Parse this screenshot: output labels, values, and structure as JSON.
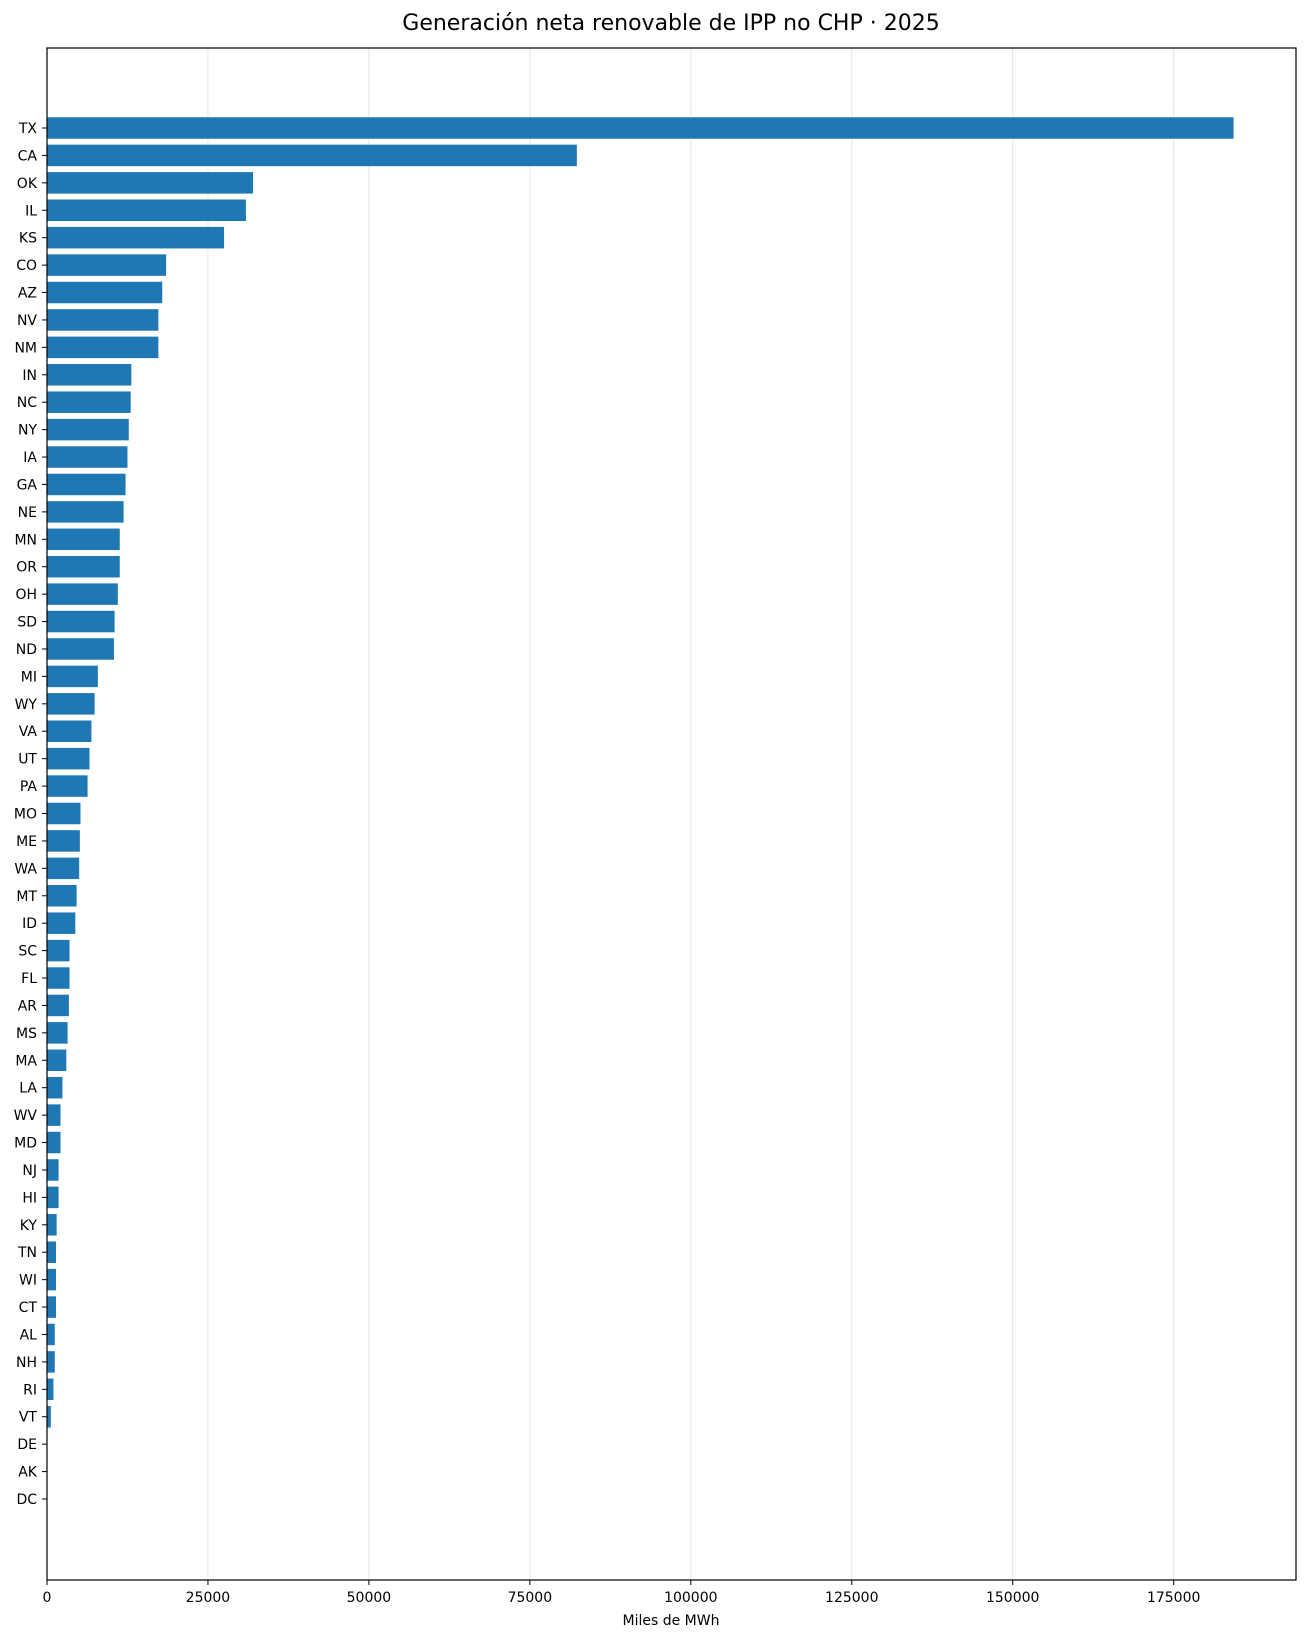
{
  "chart_data": {
    "type": "bar",
    "orientation": "horizontal",
    "title": "Generación neta renovable de IPP no CHP · 2025",
    "xlabel": "Miles de MWh",
    "ylabel": "",
    "xlim": [
      0,
      194000
    ],
    "x_ticks": [
      0,
      25000,
      50000,
      75000,
      100000,
      125000,
      150000,
      175000
    ],
    "x_tick_labels": [
      "0",
      "25000",
      "50000",
      "75000",
      "100000",
      "125000",
      "150000",
      "175000"
    ],
    "grid": "vertical",
    "bar_color": "#1f77b4",
    "categories": [
      "TX",
      "CA",
      "OK",
      "IL",
      "KS",
      "CO",
      "AZ",
      "NV",
      "NM",
      "IN",
      "NC",
      "NY",
      "IA",
      "GA",
      "NE",
      "MN",
      "OR",
      "OH",
      "SD",
      "ND",
      "MI",
      "WY",
      "VA",
      "UT",
      "PA",
      "MO",
      "ME",
      "WA",
      "MT",
      "ID",
      "SC",
      "FL",
      "AR",
      "MS",
      "MA",
      "LA",
      "WV",
      "MD",
      "NJ",
      "HI",
      "KY",
      "TN",
      "WI",
      "CT",
      "AL",
      "NH",
      "RI",
      "VT",
      "DE",
      "AK",
      "DC"
    ],
    "values": [
      184300,
      82300,
      32000,
      30900,
      27500,
      18500,
      17900,
      17300,
      17300,
      13100,
      13000,
      12700,
      12500,
      12200,
      11900,
      11300,
      11300,
      11000,
      10500,
      10400,
      7900,
      7400,
      6900,
      6600,
      6300,
      5200,
      5100,
      5000,
      4600,
      4400,
      3500,
      3500,
      3400,
      3200,
      3000,
      2400,
      2100,
      2100,
      1800,
      1800,
      1500,
      1400,
      1400,
      1400,
      1200,
      1200,
      1000,
      600,
      0,
      0,
      0
    ]
  }
}
